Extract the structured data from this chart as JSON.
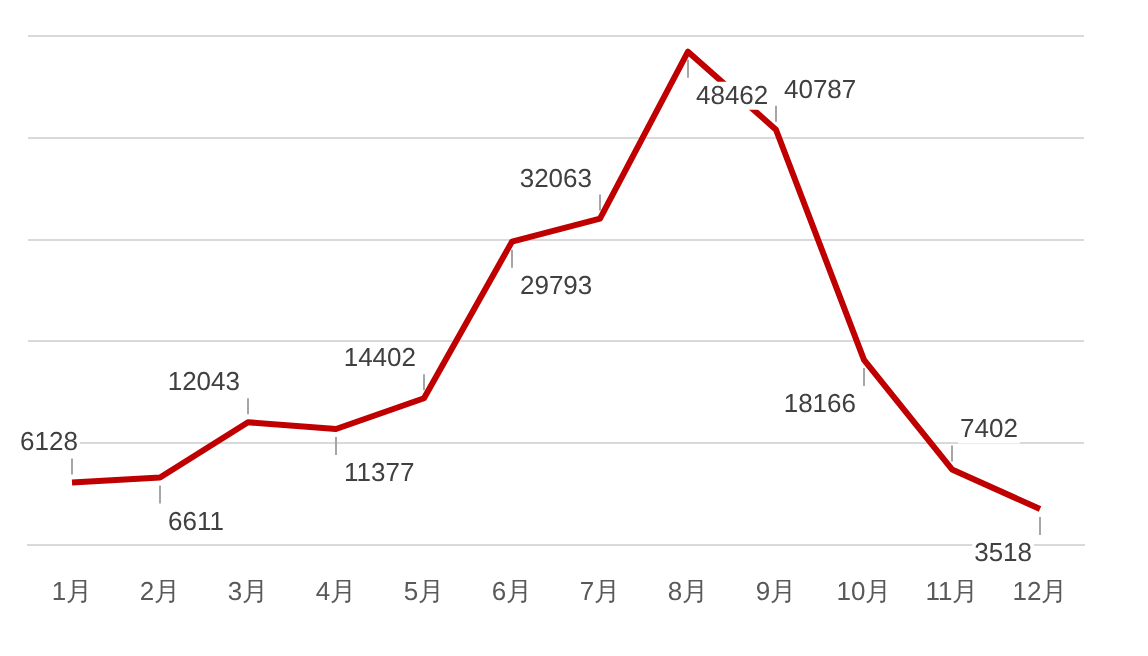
{
  "chart_data": {
    "type": "line",
    "categories": [
      "1月",
      "2月",
      "3月",
      "4月",
      "5月",
      "6月",
      "7月",
      "8月",
      "9月",
      "10月",
      "11月",
      "12月"
    ],
    "series": [
      {
        "color": "#c00000",
        "values": [
          6128,
          6611,
          12043,
          11377,
          14402,
          29793,
          32063,
          48462,
          40787,
          18166,
          7402,
          3518
        ]
      }
    ],
    "ylim": [
      0,
      50000
    ],
    "yticks": [
      {
        "value": 0,
        "label": null
      },
      {
        "value": 10000,
        "label": null
      },
      {
        "value": 20000,
        "label": null
      },
      {
        "value": 30000,
        "label": null
      },
      {
        "value": 40000,
        "label": null
      },
      {
        "value": 50000,
        "label": null
      }
    ],
    "tick_labels": "x",
    "grid": "y",
    "legend": false,
    "marker": "none",
    "line_style": "solid",
    "data_labels": true
  }
}
